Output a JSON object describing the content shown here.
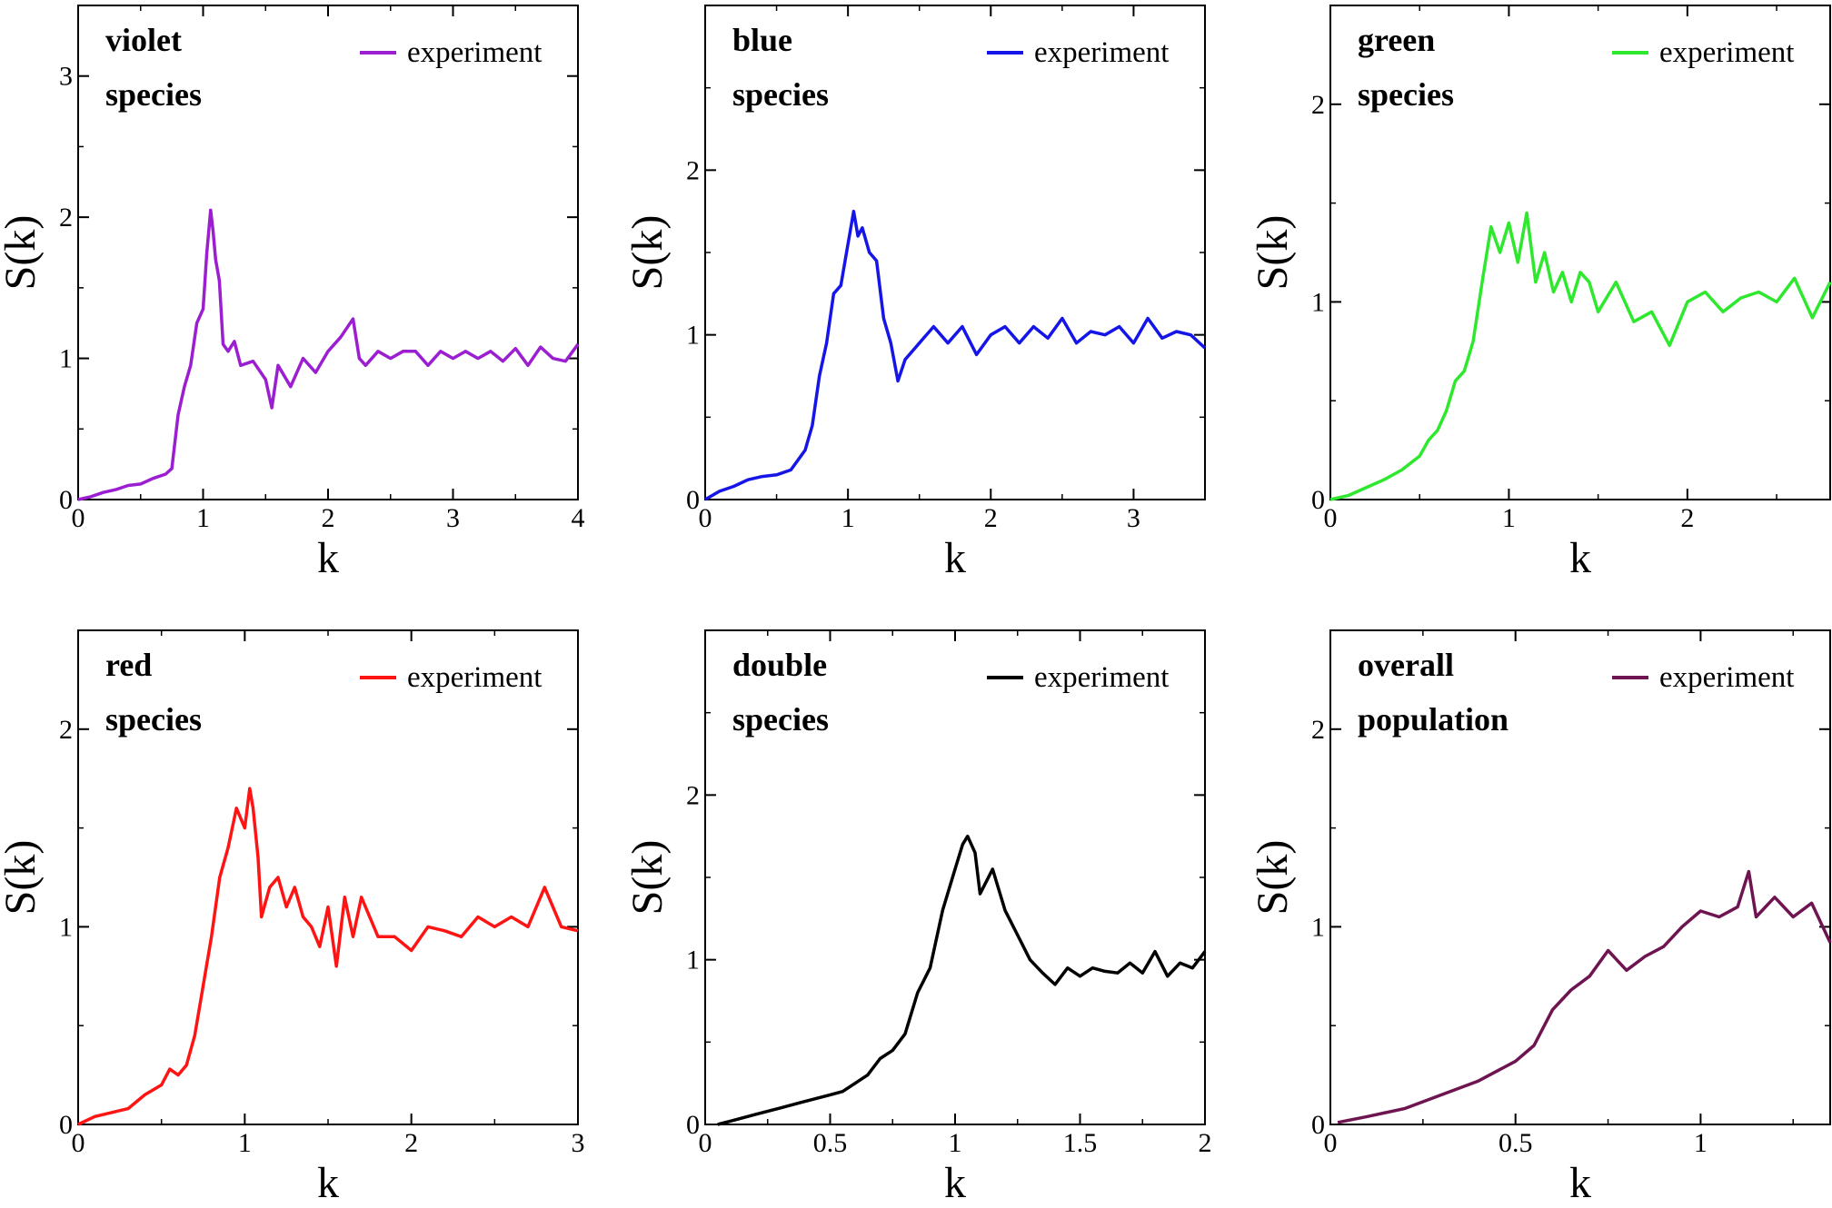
{
  "chart_data": [
    {
      "type": "line",
      "panel_label": [
        "violet",
        "species"
      ],
      "xlabel": "k",
      "ylabel": "S(k)",
      "xlim": [
        0,
        4
      ],
      "ylim": [
        0,
        3.5
      ],
      "xticks": [
        0,
        1,
        2,
        3,
        4
      ],
      "yticks": [
        0,
        1,
        2,
        3
      ],
      "grid": false,
      "legend_position": "top-right",
      "series": [
        {
          "name": "experiment",
          "color": "#9b1fd0",
          "x": [
            0,
            0.1,
            0.2,
            0.3,
            0.4,
            0.5,
            0.6,
            0.7,
            0.75,
            0.8,
            0.85,
            0.9,
            0.95,
            1.0,
            1.03,
            1.06,
            1.08,
            1.1,
            1.13,
            1.16,
            1.2,
            1.25,
            1.3,
            1.4,
            1.5,
            1.55,
            1.6,
            1.7,
            1.8,
            1.9,
            2.0,
            2.1,
            2.2,
            2.25,
            2.3,
            2.4,
            2.5,
            2.6,
            2.7,
            2.8,
            2.9,
            3.0,
            3.1,
            3.2,
            3.3,
            3.4,
            3.5,
            3.6,
            3.7,
            3.8,
            3.9,
            4.0
          ],
          "y": [
            0,
            0.02,
            0.05,
            0.07,
            0.1,
            0.11,
            0.15,
            0.18,
            0.22,
            0.6,
            0.8,
            0.95,
            1.25,
            1.35,
            1.75,
            2.05,
            1.9,
            1.7,
            1.55,
            1.1,
            1.05,
            1.12,
            0.95,
            0.98,
            0.85,
            0.65,
            0.95,
            0.8,
            1.0,
            0.9,
            1.05,
            1.15,
            1.28,
            1.0,
            0.95,
            1.05,
            1.0,
            1.05,
            1.05,
            0.95,
            1.05,
            1.0,
            1.05,
            1.0,
            1.05,
            0.98,
            1.07,
            0.95,
            1.08,
            1.0,
            0.98,
            1.1
          ]
        }
      ]
    },
    {
      "type": "line",
      "panel_label": [
        "blue",
        "species"
      ],
      "xlabel": "k",
      "ylabel": "S(k)",
      "xlim": [
        0,
        3.5
      ],
      "ylim": [
        0,
        3.0
      ],
      "xticks": [
        0,
        1,
        2,
        3
      ],
      "yticks": [
        0,
        1,
        2
      ],
      "grid": false,
      "legend_position": "top-right",
      "series": [
        {
          "name": "experiment",
          "color": "#1515e8",
          "x": [
            0,
            0.1,
            0.2,
            0.3,
            0.4,
            0.5,
            0.6,
            0.7,
            0.75,
            0.8,
            0.85,
            0.9,
            0.95,
            1.0,
            1.04,
            1.07,
            1.1,
            1.15,
            1.2,
            1.25,
            1.3,
            1.35,
            1.4,
            1.5,
            1.6,
            1.7,
            1.8,
            1.9,
            2.0,
            2.1,
            2.2,
            2.3,
            2.4,
            2.5,
            2.6,
            2.7,
            2.8,
            2.9,
            3.0,
            3.1,
            3.2,
            3.3,
            3.4,
            3.5
          ],
          "y": [
            0,
            0.05,
            0.08,
            0.12,
            0.14,
            0.15,
            0.18,
            0.3,
            0.45,
            0.75,
            0.95,
            1.25,
            1.3,
            1.55,
            1.75,
            1.6,
            1.65,
            1.5,
            1.45,
            1.1,
            0.95,
            0.72,
            0.85,
            0.95,
            1.05,
            0.95,
            1.05,
            0.88,
            1.0,
            1.05,
            0.95,
            1.05,
            0.98,
            1.1,
            0.95,
            1.02,
            1.0,
            1.05,
            0.95,
            1.1,
            0.98,
            1.02,
            1.0,
            0.92
          ]
        }
      ]
    },
    {
      "type": "line",
      "panel_label": [
        "green",
        "species"
      ],
      "xlabel": "k",
      "ylabel": "S(k)",
      "xlim": [
        0,
        2.8
      ],
      "ylim": [
        0,
        2.5
      ],
      "xticks": [
        0,
        1,
        2
      ],
      "yticks": [
        0,
        1,
        2
      ],
      "grid": false,
      "legend_position": "top-right",
      "series": [
        {
          "name": "experiment",
          "color": "#2ee82e",
          "x": [
            0,
            0.1,
            0.2,
            0.3,
            0.4,
            0.5,
            0.55,
            0.6,
            0.65,
            0.7,
            0.75,
            0.8,
            0.85,
            0.9,
            0.95,
            1.0,
            1.05,
            1.1,
            1.15,
            1.2,
            1.25,
            1.3,
            1.35,
            1.4,
            1.45,
            1.5,
            1.6,
            1.7,
            1.8,
            1.9,
            2.0,
            2.1,
            2.2,
            2.3,
            2.4,
            2.5,
            2.6,
            2.7,
            2.8
          ],
          "y": [
            0,
            0.02,
            0.06,
            0.1,
            0.15,
            0.22,
            0.3,
            0.35,
            0.45,
            0.6,
            0.65,
            0.8,
            1.1,
            1.38,
            1.25,
            1.4,
            1.2,
            1.45,
            1.1,
            1.25,
            1.05,
            1.15,
            1.0,
            1.15,
            1.1,
            0.95,
            1.1,
            0.9,
            0.95,
            0.78,
            1.0,
            1.05,
            0.95,
            1.02,
            1.05,
            1.0,
            1.12,
            0.92,
            1.1
          ]
        }
      ]
    },
    {
      "type": "line",
      "panel_label": [
        "red",
        "species"
      ],
      "xlabel": "k",
      "ylabel": "S(k)",
      "xlim": [
        0,
        3
      ],
      "ylim": [
        0,
        2.5
      ],
      "xticks": [
        0,
        1,
        2,
        3
      ],
      "yticks": [
        0,
        1,
        2
      ],
      "grid": false,
      "legend_position": "top-right",
      "series": [
        {
          "name": "experiment",
          "color": "#ff1414",
          "x": [
            0,
            0.1,
            0.2,
            0.3,
            0.4,
            0.5,
            0.55,
            0.6,
            0.65,
            0.7,
            0.75,
            0.8,
            0.85,
            0.9,
            0.95,
            1.0,
            1.03,
            1.05,
            1.08,
            1.1,
            1.15,
            1.2,
            1.25,
            1.3,
            1.35,
            1.4,
            1.45,
            1.5,
            1.55,
            1.6,
            1.65,
            1.7,
            1.8,
            1.9,
            2.0,
            2.1,
            2.2,
            2.3,
            2.4,
            2.5,
            2.6,
            2.7,
            2.8,
            2.9,
            3.0
          ],
          "y": [
            0,
            0.04,
            0.06,
            0.08,
            0.15,
            0.2,
            0.28,
            0.25,
            0.3,
            0.45,
            0.7,
            0.95,
            1.25,
            1.4,
            1.6,
            1.5,
            1.7,
            1.6,
            1.35,
            1.05,
            1.2,
            1.25,
            1.1,
            1.2,
            1.05,
            1.0,
            0.9,
            1.1,
            0.8,
            1.15,
            0.95,
            1.15,
            0.95,
            0.95,
            0.88,
            1.0,
            0.98,
            0.95,
            1.05,
            1.0,
            1.05,
            1.0,
            1.2,
            1.0,
            0.98
          ]
        }
      ]
    },
    {
      "type": "line",
      "panel_label": [
        "double",
        "species"
      ],
      "xlabel": "k",
      "ylabel": "S(k)",
      "xlim": [
        0,
        2
      ],
      "ylim": [
        0,
        3.0
      ],
      "xticks": [
        0,
        0.5,
        1,
        1.5,
        2
      ],
      "xtick_labels": [
        "0",
        "0.5",
        "1",
        "1.5",
        "2"
      ],
      "yticks": [
        0,
        1,
        2
      ],
      "grid": false,
      "legend_position": "top-right",
      "series": [
        {
          "name": "experiment",
          "color": "#000000",
          "x": [
            0.05,
            0.1,
            0.2,
            0.3,
            0.4,
            0.5,
            0.55,
            0.6,
            0.65,
            0.7,
            0.75,
            0.8,
            0.85,
            0.9,
            0.95,
            1.0,
            1.03,
            1.05,
            1.08,
            1.1,
            1.15,
            1.2,
            1.25,
            1.3,
            1.35,
            1.4,
            1.45,
            1.5,
            1.55,
            1.6,
            1.65,
            1.7,
            1.75,
            1.8,
            1.85,
            1.9,
            1.95,
            2.0
          ],
          "y": [
            0,
            0.02,
            0.06,
            0.1,
            0.14,
            0.18,
            0.2,
            0.25,
            0.3,
            0.4,
            0.45,
            0.55,
            0.8,
            0.95,
            1.3,
            1.55,
            1.7,
            1.75,
            1.65,
            1.4,
            1.55,
            1.3,
            1.15,
            1.0,
            0.92,
            0.85,
            0.95,
            0.9,
            0.95,
            0.93,
            0.92,
            0.98,
            0.92,
            1.05,
            0.9,
            0.98,
            0.95,
            1.05
          ]
        }
      ]
    },
    {
      "type": "line",
      "panel_label": [
        "overall",
        "population"
      ],
      "xlabel": "k",
      "ylabel": "S(k)",
      "xlim": [
        0,
        1.35
      ],
      "ylim": [
        0,
        2.5
      ],
      "xticks": [
        0,
        0.5,
        1
      ],
      "xtick_labels": [
        "0",
        "0.5",
        "1"
      ],
      "yticks": [
        0,
        1,
        2
      ],
      "grid": false,
      "legend_position": "top-right",
      "series": [
        {
          "name": "experiment",
          "color": "#6e1450",
          "x": [
            0.02,
            0.1,
            0.2,
            0.3,
            0.4,
            0.5,
            0.55,
            0.6,
            0.65,
            0.7,
            0.75,
            0.8,
            0.85,
            0.9,
            0.95,
            1.0,
            1.05,
            1.1,
            1.13,
            1.15,
            1.2,
            1.25,
            1.3,
            1.35
          ],
          "y": [
            0.01,
            0.04,
            0.08,
            0.15,
            0.22,
            0.32,
            0.4,
            0.58,
            0.68,
            0.75,
            0.88,
            0.78,
            0.85,
            0.9,
            1.0,
            1.08,
            1.05,
            1.1,
            1.28,
            1.05,
            1.15,
            1.05,
            1.12,
            0.92
          ]
        }
      ]
    }
  ]
}
